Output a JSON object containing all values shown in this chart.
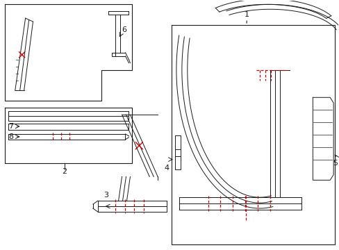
{
  "bg_color": "#ffffff",
  "line_color": "#1a1a1a",
  "red_color": "#cc0000",
  "label_color": "#000000",
  "figsize": [
    4.89,
    3.6
  ],
  "dpi": 100
}
